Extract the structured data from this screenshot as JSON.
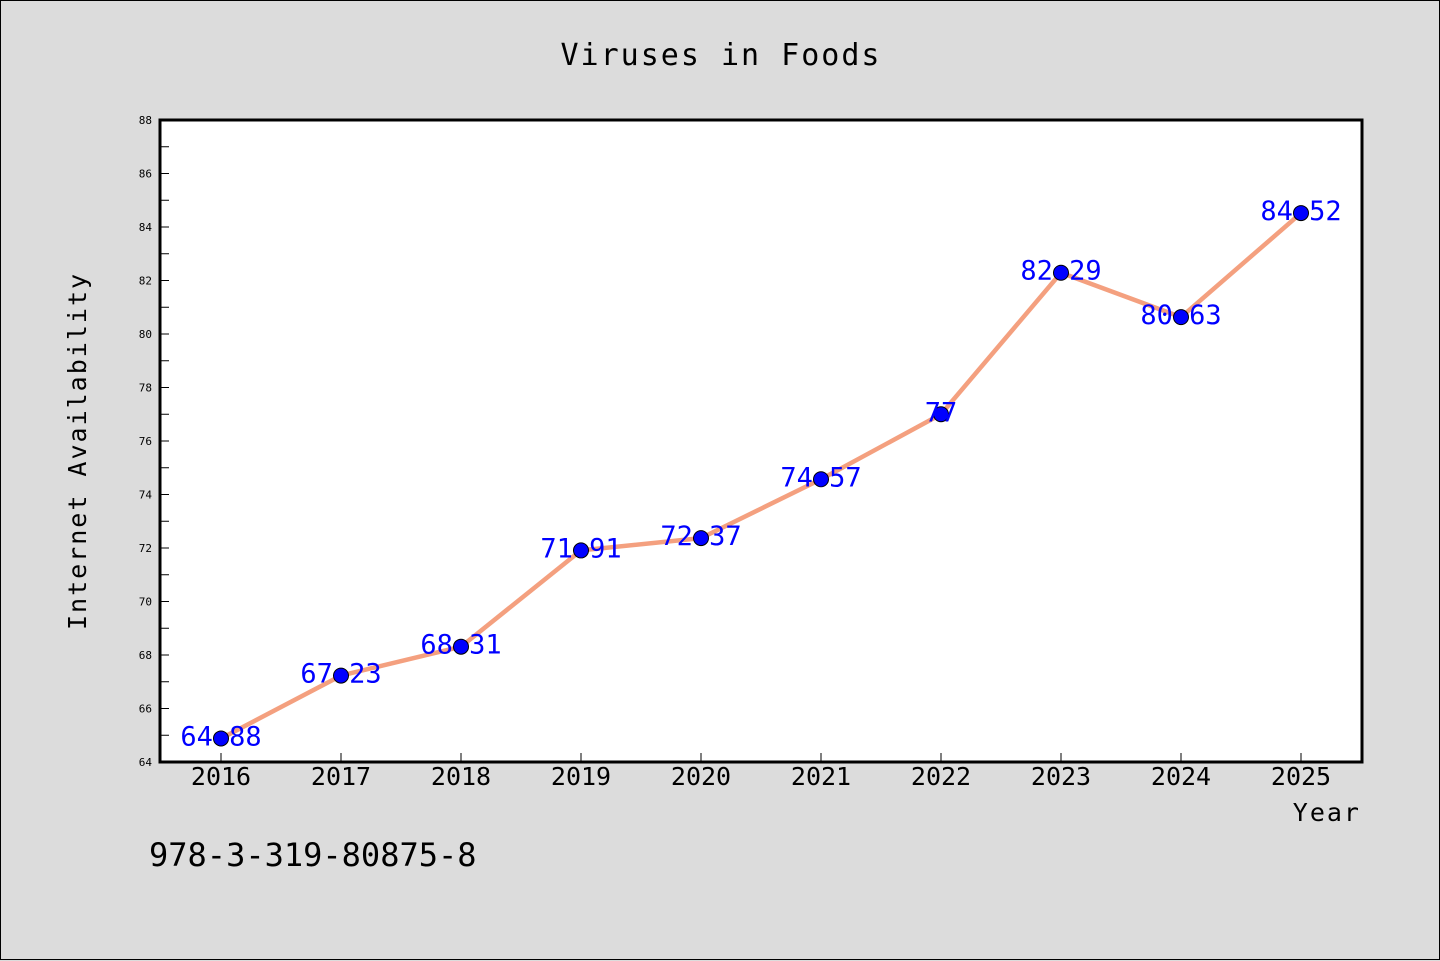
{
  "chart_data": {
    "type": "line",
    "title": "Viruses in Foods",
    "xlabel": "Year",
    "ylabel": "Internet Availability",
    "categories": [
      "2016",
      "2017",
      "2018",
      "2019",
      "2020",
      "2021",
      "2022",
      "2023",
      "2024",
      "2025"
    ],
    "series": [
      {
        "values": [
          64.88,
          67.23,
          68.31,
          71.91,
          72.37,
          74.57,
          77,
          82.29,
          80.63,
          84.52
        ],
        "labels": [
          "64.88",
          "67.23",
          "68.31",
          "71.91",
          "72.37",
          "74.57",
          "77",
          "82.29",
          "80.63",
          "84.52"
        ],
        "line_color": "#f4a07f",
        "marker_color": "#0000ff"
      }
    ],
    "ylim": [
      64,
      88
    ],
    "yticks": [
      64,
      66,
      68,
      70,
      72,
      74,
      76,
      78,
      80,
      82,
      84,
      86,
      88
    ],
    "grid": false,
    "legend": "none"
  },
  "annotation": {
    "text": "978-3-319-80875-8"
  },
  "colors": {
    "background": "#dcdcdc",
    "plot_background": "#ffffff"
  }
}
